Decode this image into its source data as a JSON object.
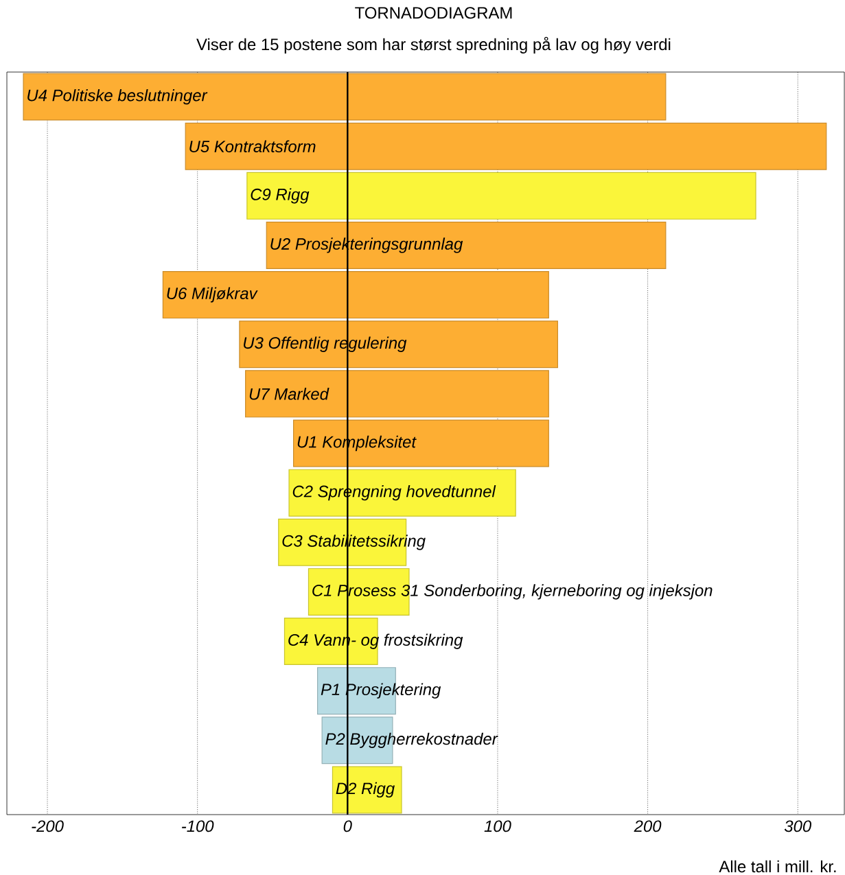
{
  "chart_data": {
    "type": "bar",
    "orientation": "horizontal",
    "title": "TORNADODIAGRAM",
    "subtitle": "Viser de 15 postene som har størst spredning på lav og høy verdi",
    "categories": [
      "U4 Politiske beslutninger",
      "U5 Kontraktsform",
      "C9 Rigg",
      "U2 Prosjekteringsgrunnlag",
      "U6 Miljøkrav",
      "U3 Offentlig regulering",
      "U7 Marked",
      "U1 Kompleksitet",
      "C2 Sprengning hovedtunnel",
      "C3 Stabilitetssikring",
      "C1 Prosess 31 Sonderboring, kjerneboring og injeksjon",
      "C4 Vann- og frostsikring",
      "P1 Prosjektering",
      "P2 Byggherrekostnader",
      "D2 Rigg"
    ],
    "base": [
      -216,
      -108,
      -67,
      -54,
      -123,
      -72,
      -68,
      -36,
      -39,
      -46,
      -26,
      -42,
      -20,
      -17,
      -10
    ],
    "values": [
      428,
      427,
      339,
      266,
      257,
      212,
      202,
      170,
      151,
      85,
      67,
      62,
      52,
      47,
      46
    ],
    "colors": [
      "#fdae33",
      "#fdae33",
      "#faf53a",
      "#fdae33",
      "#fdae33",
      "#fdae33",
      "#fdae33",
      "#fdae33",
      "#faf53a",
      "#faf53a",
      "#faf53a",
      "#faf53a",
      "#b8dce4",
      "#b8dce4",
      "#faf53a"
    ],
    "xlim": [
      -227,
      331
    ],
    "xticks": [
      -200,
      -100,
      0,
      100,
      200,
      300
    ],
    "grid": "x",
    "tick_labels": "x",
    "annotations": [
      "Alle tall i mill. kr."
    ]
  }
}
